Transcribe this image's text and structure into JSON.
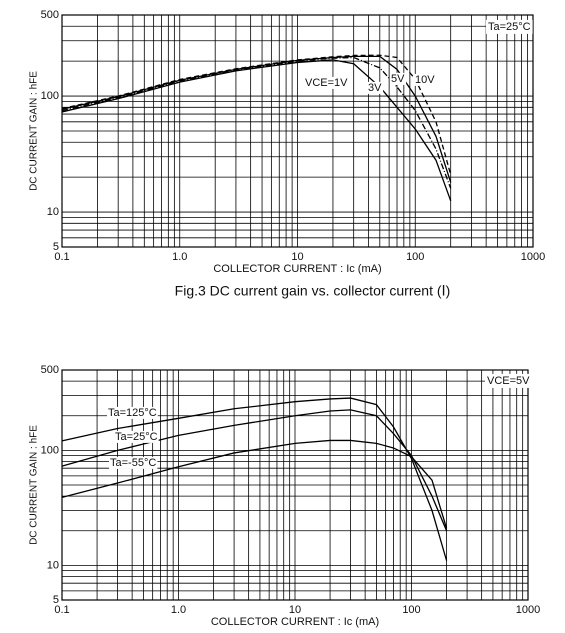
{
  "chart_data": [
    {
      "type": "line",
      "caption": "Fig.3  DC current gain vs. collector current (Ⅰ)",
      "x_label": "COLLECTOR CURRENT : Ic (mA)",
      "y_label": "DC CURRENT GAIN : hFE",
      "annotation": "Ta=25°C",
      "log_x": true,
      "log_y": true,
      "grid": true,
      "xlim": [
        0.1,
        1000
      ],
      "ylim": [
        5,
        500
      ],
      "xticks": [
        0.1,
        {
          "value": 1,
          "label": "1.0"
        },
        10,
        100,
        1000
      ],
      "yticks": [
        5,
        10,
        100,
        500
      ],
      "x_minor_ticks": [
        0.2,
        0.3,
        0.4,
        0.5,
        0.6,
        0.7,
        0.8,
        0.9,
        2,
        3,
        4,
        5,
        6,
        7,
        8,
        9,
        20,
        30,
        40,
        50,
        60,
        70,
        80,
        90,
        200,
        300,
        400,
        500,
        600,
        700,
        800,
        900
      ],
      "y_minor_ticks": [
        6,
        7,
        8,
        9,
        20,
        30,
        40,
        50,
        60,
        70,
        80,
        90,
        200,
        300,
        400
      ],
      "x": [
        0.1,
        0.3,
        1,
        3,
        10,
        20,
        30,
        50,
        70,
        100,
        150,
        200
      ],
      "series": [
        {
          "name": "VCE=1V",
          "color": "#000000",
          "style": "solid",
          "values": [
            73,
            95,
            132,
            165,
            195,
            205,
            190,
            120,
            80,
            52,
            28,
            12.5
          ]
        },
        {
          "name": "3V",
          "color": "#000000",
          "style": "dashdot",
          "values": [
            75,
            97,
            135,
            168,
            200,
            212,
            215,
            175,
            120,
            75,
            35,
            16
          ]
        },
        {
          "name": "5V",
          "color": "#000000",
          "style": "solid",
          "values": [
            77,
            99,
            137,
            170,
            203,
            215,
            220,
            220,
            170,
            100,
            45,
            18
          ]
        },
        {
          "name": "10V",
          "color": "#000000",
          "style": "dashed",
          "values": [
            78,
            100,
            139,
            172,
            205,
            218,
            224,
            225,
            215,
            140,
            60,
            21
          ]
        }
      ]
    },
    {
      "type": "line",
      "x_label": "COLLECTOR  CURRENT : Ic (mA)",
      "y_label": "DC CURRENT GAIN : hFE",
      "annotation": "VCE=5V",
      "log_x": true,
      "log_y": true,
      "grid": true,
      "xlim": [
        0.1,
        1000
      ],
      "ylim": [
        5,
        500
      ],
      "xticks": [
        0.1,
        {
          "value": 1,
          "label": "1.0"
        },
        10,
        100,
        1000
      ],
      "yticks": [
        5,
        10,
        100,
        500
      ],
      "x_minor_ticks": [
        0.2,
        0.3,
        0.4,
        0.5,
        0.6,
        0.7,
        0.8,
        0.9,
        2,
        3,
        4,
        5,
        6,
        7,
        8,
        9,
        20,
        30,
        40,
        50,
        60,
        70,
        80,
        90,
        200,
        300,
        400,
        500,
        600,
        700,
        800,
        900
      ],
      "y_minor_ticks": [
        6,
        7,
        8,
        9,
        20,
        30,
        40,
        50,
        60,
        70,
        80,
        90,
        200,
        300,
        400
      ],
      "x": [
        0.1,
        0.3,
        1,
        3,
        10,
        20,
        30,
        50,
        70,
        100,
        150,
        200
      ],
      "series": [
        {
          "name": "Ta=125°C",
          "color": "#000000",
          "style": "solid",
          "values": [
            121,
            155,
            190,
            230,
            265,
            280,
            285,
            250,
            160,
            85,
            30,
            11
          ]
        },
        {
          "name": "Ta=25°C",
          "color": "#000000",
          "style": "solid",
          "values": [
            73,
            100,
            135,
            165,
            200,
            220,
            225,
            200,
            140,
            90,
            40,
            20
          ]
        },
        {
          "name": "Ta=-55°C",
          "color": "#000000",
          "style": "solid",
          "values": [
            39,
            52,
            72,
            95,
            115,
            122,
            122,
            115,
            105,
            88,
            55,
            21
          ]
        }
      ]
    }
  ]
}
